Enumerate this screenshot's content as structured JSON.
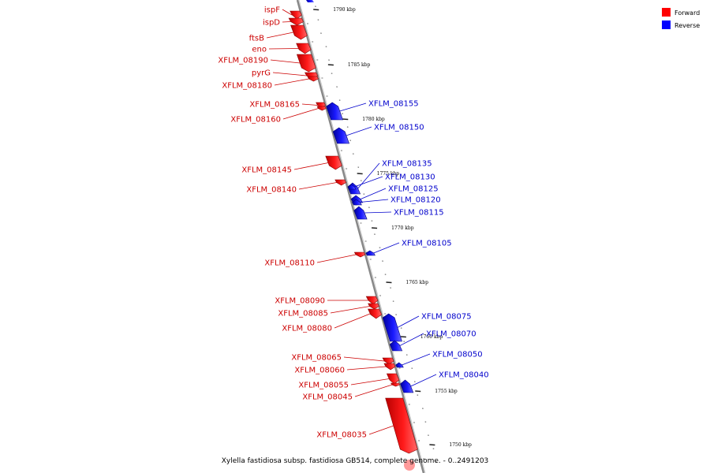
{
  "caption": "Xylella fastidiosa subsp. fastidiosa GB514, complete genome. - 0..2491203",
  "colors": {
    "forward": "#ff0000",
    "reverse": "#0000ff",
    "forward_label": "#cc0000",
    "reverse_label": "#0000cc",
    "backbone": "#888888"
  },
  "legend": [
    {
      "label": "Forward",
      "color": "#ff0000"
    },
    {
      "label": "Reverse",
      "color": "#0000ff"
    }
  ],
  "ticks": [
    "1790 kbp",
    "1785 kbp",
    "1780 kbp",
    "1775 kbp",
    "1770 kbp",
    "1765 kbp",
    "1760 kbp",
    "1755 kbp",
    "1750 kbp"
  ],
  "forward_genes": [
    "ispF",
    "ispD",
    "ftsB",
    "eno",
    "XFLM_08190",
    "pyrG",
    "XFLM_08180",
    "XFLM_08165",
    "XFLM_08160",
    "XFLM_08145",
    "XFLM_08140",
    "XFLM_08110",
    "XFLM_08090",
    "XFLM_08085",
    "XFLM_08080",
    "XFLM_08065",
    "XFLM_08060",
    "XFLM_08055",
    "XFLM_08045",
    "XFLM_08035"
  ],
  "reverse_genes": [
    "XFLM_08155",
    "XFLM_08150",
    "XFLM_08135",
    "XFLM_08130",
    "XFLM_08125",
    "XFLM_08120",
    "XFLM_08115",
    "XFLM_08105",
    "XFLM_08075",
    "XFLM_08070",
    "XFLM_08050",
    "XFLM_08040"
  ]
}
